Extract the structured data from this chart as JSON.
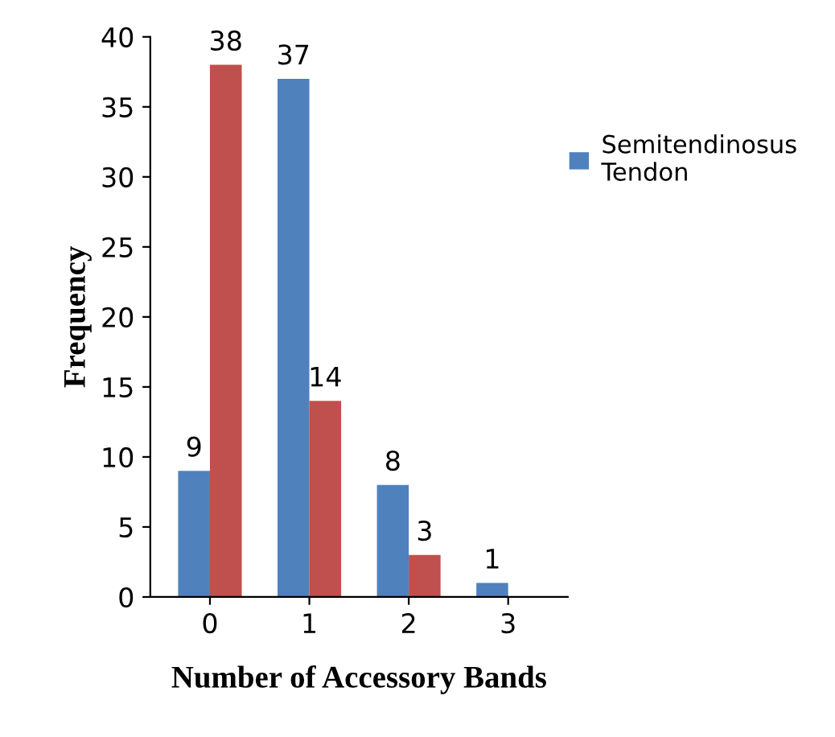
{
  "chart_data": {
    "type": "bar",
    "xlabel": "Number of Accessory Bands",
    "ylabel": "Frequency",
    "categories": [
      "0",
      "1",
      "2",
      "3"
    ],
    "series": [
      {
        "name": "Semitendinosus Tendon",
        "color": "#4f81bd",
        "values": [
          9,
          37,
          8,
          1
        ]
      },
      {
        "color": "#c0504d",
        "values": [
          38,
          14,
          3,
          null
        ]
      }
    ],
    "ylim": [
      0,
      40
    ],
    "yticks": [
      0,
      5,
      10,
      15,
      20,
      25,
      30,
      35,
      40
    ],
    "data_labels": true,
    "legend": "right",
    "grid": false
  }
}
